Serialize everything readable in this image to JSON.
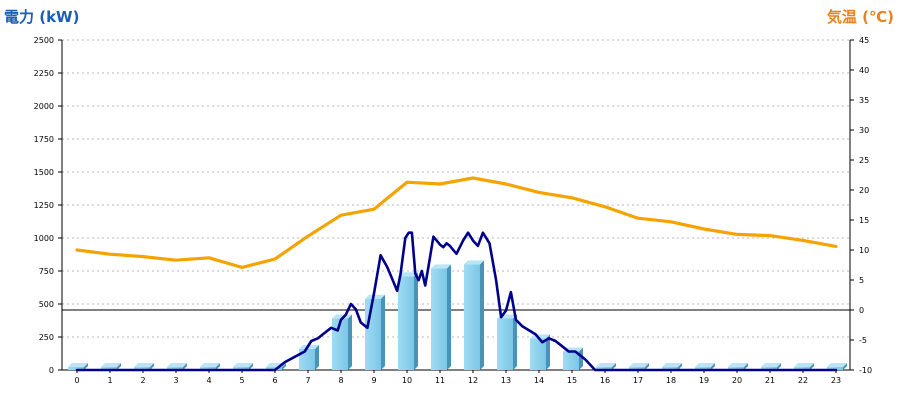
{
  "chart_data": {
    "type": "bar",
    "left_axis": {
      "title": "電力 (kW)",
      "min": 0,
      "max": 2500,
      "step": 250,
      "color": "#1a5fb4"
    },
    "right_axis": {
      "title": "気温 (℃)",
      "min": -10,
      "max": 45,
      "step": 5,
      "color": "#e8821e"
    },
    "categories": [
      "0",
      "1",
      "2",
      "3",
      "4",
      "5",
      "6",
      "7",
      "8",
      "9",
      "10",
      "11",
      "12",
      "13",
      "14",
      "15",
      "16",
      "17",
      "18",
      "19",
      "20",
      "21",
      "22",
      "23"
    ],
    "grid": true,
    "series": [
      {
        "kind": "bar",
        "axis": "left",
        "color": "#87ceeb",
        "values": [
          0,
          0,
          0,
          0,
          0,
          0,
          0,
          160,
          390,
          540,
          710,
          770,
          800,
          390,
          240,
          140,
          0,
          0,
          0,
          0,
          0,
          0,
          0,
          0
        ]
      },
      {
        "kind": "line",
        "axis": "left",
        "color": "#00008b",
        "x": [
          0,
          1,
          2,
          3,
          4,
          5,
          6,
          6.3,
          6.6,
          6.9,
          7.1,
          7.3,
          7.5,
          7.7,
          7.9,
          8.0,
          8.15,
          8.3,
          8.45,
          8.6,
          8.8,
          9.0,
          9.2,
          9.4,
          9.55,
          9.7,
          9.8,
          9.95,
          10.05,
          10.15,
          10.25,
          10.35,
          10.45,
          10.55,
          10.65,
          10.8,
          11.0,
          11.1,
          11.2,
          11.3,
          11.5,
          11.7,
          11.85,
          12.0,
          12.15,
          12.3,
          12.5,
          12.7,
          12.85,
          13.0,
          13.15,
          13.3,
          13.5,
          13.7,
          13.9,
          14.1,
          14.3,
          14.5,
          14.7,
          14.9,
          15.1,
          15.4,
          15.7,
          16,
          17,
          18,
          19,
          20,
          21,
          22,
          23
        ],
        "y": [
          0,
          0,
          0,
          0,
          0,
          0,
          0,
          60,
          100,
          140,
          220,
          240,
          280,
          320,
          300,
          380,
          420,
          500,
          460,
          360,
          320,
          580,
          870,
          780,
          690,
          600,
          720,
          1000,
          1040,
          1040,
          730,
          680,
          750,
          640,
          780,
          1010,
          950,
          930,
          960,
          940,
          880,
          980,
          1040,
          980,
          940,
          1040,
          960,
          680,
          400,
          450,
          590,
          380,
          330,
          300,
          270,
          210,
          240,
          220,
          180,
          140,
          140,
          80,
          0,
          0,
          0,
          0,
          0,
          0,
          0,
          0,
          0
        ]
      },
      {
        "kind": "line",
        "axis": "right",
        "color": "#f5a300",
        "values": [
          10,
          9.3,
          8.9,
          8.3,
          8.7,
          7.1,
          8.5,
          12.3,
          15.8,
          16.8,
          21.3,
          21,
          22,
          21,
          19.6,
          18.7,
          17.2,
          15.3,
          14.7,
          13.5,
          12.6,
          12.4,
          11.6,
          10.6
        ]
      }
    ]
  }
}
